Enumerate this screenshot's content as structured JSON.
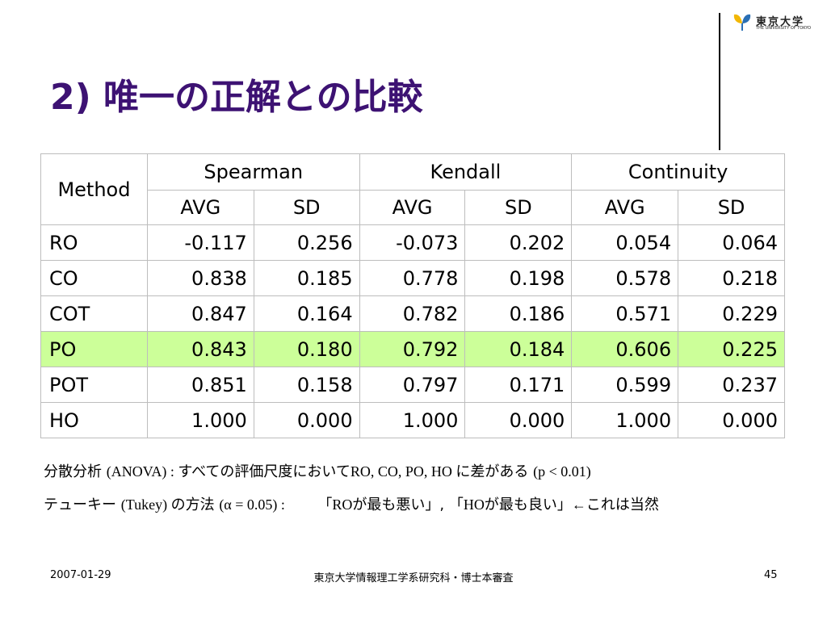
{
  "title": "2) 唯一の正解との比較",
  "logo": {
    "jp": "東京大学",
    "en": "THE UNIVERSITY OF TOKYO",
    "icon": "ginkgo-leaf-icon",
    "colors": {
      "gold": "#f2b705",
      "blue": "#2a6fb5"
    }
  },
  "table": {
    "method_header": "Method",
    "groups": [
      "Spearman",
      "Kendall",
      "Continuity"
    ],
    "subheaders": [
      "AVG",
      "SD",
      "AVG",
      "SD",
      "AVG",
      "SD"
    ],
    "highlight_color": "#ccff99",
    "rows": [
      {
        "method": "RO",
        "values": [
          "-0.117",
          "0.256",
          "-0.073",
          "0.202",
          "0.054",
          "0.064"
        ]
      },
      {
        "method": "CO",
        "values": [
          "0.838",
          "0.185",
          "0.778",
          "0.198",
          "0.578",
          "0.218"
        ]
      },
      {
        "method": "COT",
        "values": [
          "0.847",
          "0.164",
          "0.782",
          "0.186",
          "0.571",
          "0.229"
        ]
      },
      {
        "method": "PO",
        "values": [
          "0.843",
          "0.180",
          "0.792",
          "0.184",
          "0.606",
          "0.225"
        ]
      },
      {
        "method": "POT",
        "values": [
          "0.851",
          "0.158",
          "0.797",
          "0.171",
          "0.599",
          "0.237"
        ]
      },
      {
        "method": "HO",
        "values": [
          "1.000",
          "0.000",
          "1.000",
          "0.000",
          "1.000",
          "0.000"
        ]
      }
    ]
  },
  "notes": {
    "line1": {
      "p1": "分散分析 ",
      "p2": "(ANOVA) : ",
      "p3": " すべての評価尺度において",
      "p4": "RO, CO, PO, HO ",
      "p5": "に差がある ",
      "p6": "(p < 0.01)"
    },
    "line2": {
      "p1": "テューキー ",
      "p2": "(Tukey) ",
      "p3": "の方法 ",
      "p4": "(α = 0.05) : ",
      "p5": "「",
      "p6": "RO",
      "p7": "が最も悪い」, 「",
      "p8": "HO",
      "p9": "が最も良い」",
      "p10": "←",
      "p11": "これは当然"
    }
  },
  "footer": {
    "date": "2007-01-29",
    "center": "東京大学情報理工学系研究科・博士本審査",
    "page": "45"
  }
}
